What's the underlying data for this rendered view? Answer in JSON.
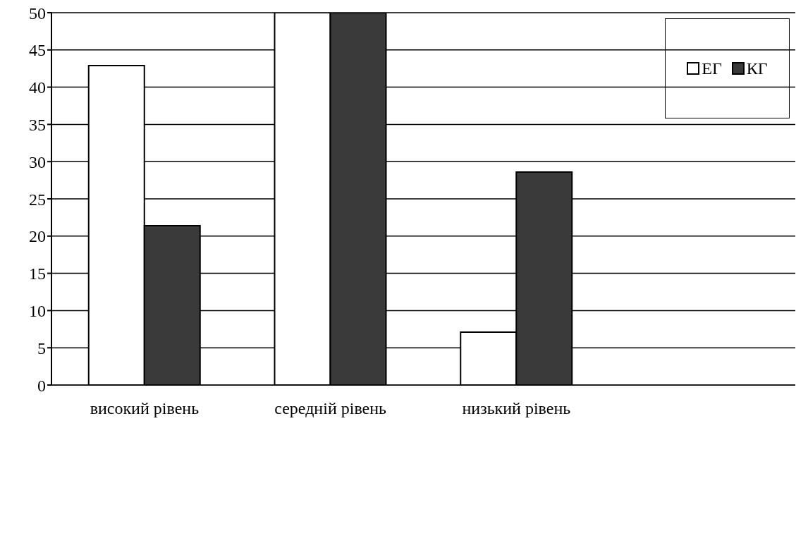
{
  "chart_data": {
    "type": "bar",
    "categories": [
      "високий рівень",
      "середній рівень",
      "низький рівень",
      null
    ],
    "series": [
      {
        "name": "ЕГ",
        "color": "#ffffff",
        "values": [
          42.9,
          50,
          7.1,
          null
        ]
      },
      {
        "name": "КГ",
        "color": "#3a3a3a",
        "values": [
          21.4,
          50,
          28.6,
          null
        ]
      }
    ],
    "ylim": [
      0,
      50
    ],
    "yticks": [
      0,
      5,
      10,
      15,
      20,
      25,
      30,
      35,
      40,
      45,
      50
    ],
    "grid": "y",
    "legend": "top right"
  }
}
